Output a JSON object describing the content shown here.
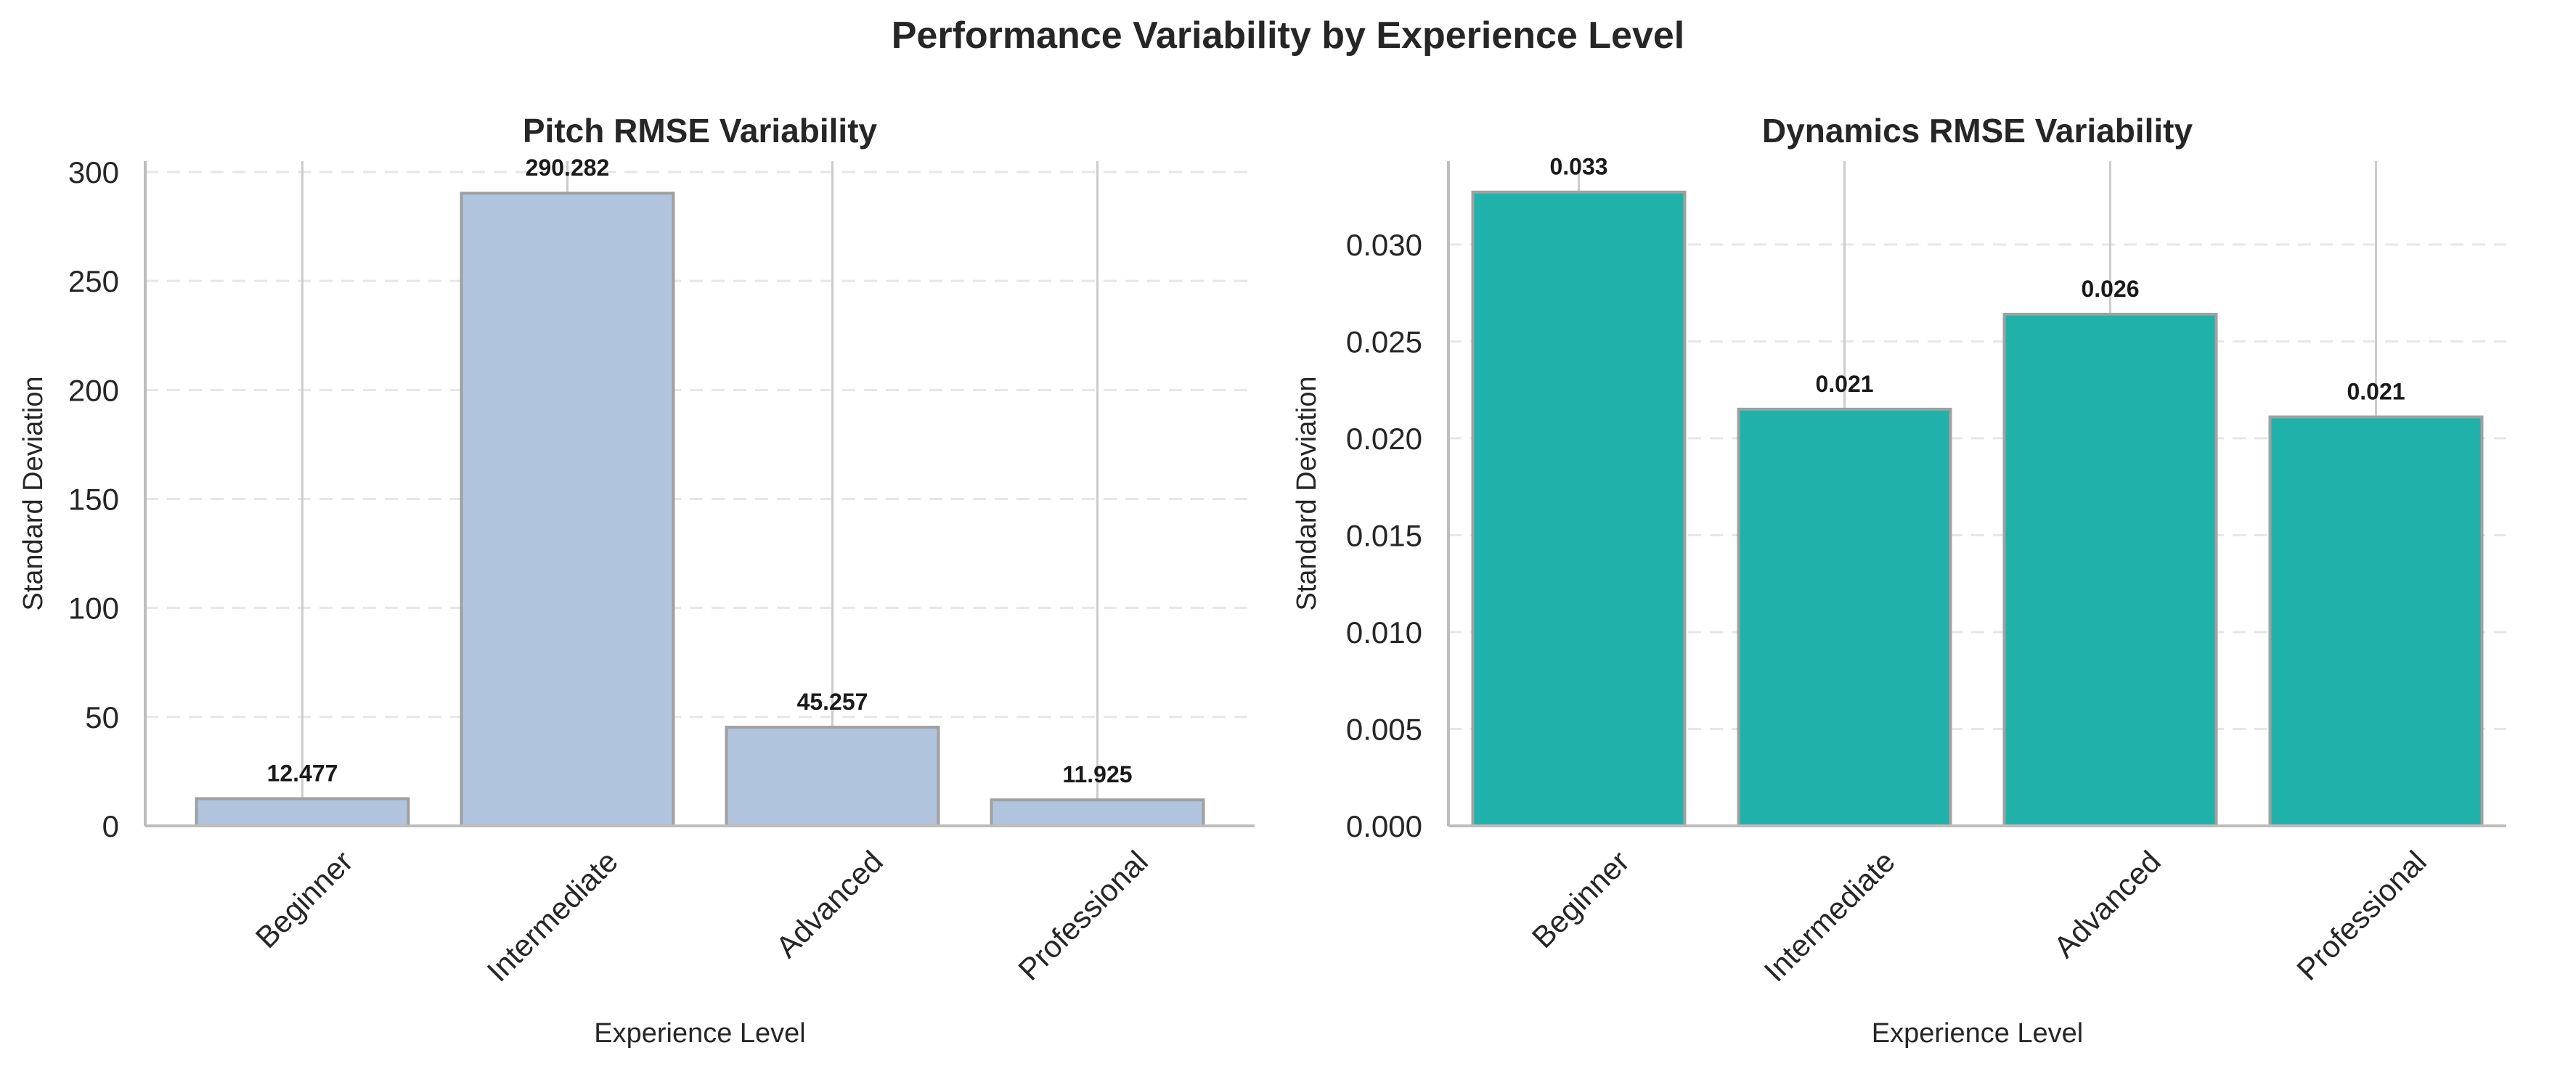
{
  "figure": {
    "title": "Performance Variability by Experience Level"
  },
  "chart_data": [
    {
      "type": "bar",
      "title": "Pitch RMSE Variability",
      "xlabel": "Experience Level",
      "ylabel": "Standard Deviation",
      "categories": [
        "Beginner",
        "Intermediate",
        "Advanced",
        "Professional"
      ],
      "values": [
        12.477,
        290.282,
        45.257,
        11.925
      ],
      "value_labels": [
        "12.477",
        "290.282",
        "45.257",
        "11.925"
      ],
      "ylim": [
        0,
        305
      ],
      "yticks": [
        0,
        50,
        100,
        150,
        200,
        250,
        300
      ],
      "ytick_labels": [
        "0",
        "50",
        "100",
        "150",
        "200",
        "250",
        "300"
      ],
      "bar_color": "#b0c4de",
      "bar_edge_color": "#a0a0a0",
      "grid": "y-dashed",
      "legend": "none"
    },
    {
      "type": "bar",
      "title": "Dynamics RMSE Variability",
      "xlabel": "Experience Level",
      "ylabel": "Standard Deviation",
      "categories": [
        "Beginner",
        "Intermediate",
        "Advanced",
        "Professional"
      ],
      "values": [
        0.0327,
        0.0215,
        0.0264,
        0.0211
      ],
      "value_labels": [
        "0.033",
        "0.021",
        "0.026",
        "0.021"
      ],
      "ylim": [
        0,
        0.0343
      ],
      "yticks": [
        0,
        0.005,
        0.01,
        0.015,
        0.02,
        0.025,
        0.03
      ],
      "ytick_labels": [
        "0.000",
        "0.005",
        "0.010",
        "0.015",
        "0.020",
        "0.025",
        "0.030"
      ],
      "bar_color": "#20b2aa",
      "bar_edge_color": "#a0a0a0",
      "grid": "y-dashed",
      "legend": "none"
    }
  ]
}
